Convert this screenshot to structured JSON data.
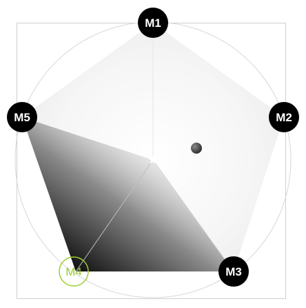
{
  "markers": [
    {
      "id": "m1",
      "label": "M1",
      "state": "filled"
    },
    {
      "id": "m2",
      "label": "M2",
      "state": "filled"
    },
    {
      "id": "m3",
      "label": "M3",
      "state": "filled"
    },
    {
      "id": "m4",
      "label": "M4",
      "state": "outlined"
    },
    {
      "id": "m5",
      "label": "M5",
      "state": "filled"
    }
  ],
  "colors": {
    "marker_fill": "#000000",
    "marker_text": "#ffffff",
    "marker_outline_accent": "#9acd32",
    "frame_stroke": "#c8c8c8",
    "circle_stroke": "#d0d0d0",
    "gradient_dark": "#111111",
    "gradient_light": "#ffffff",
    "handle": "#3a3a3a",
    "center_star": "#ffffff"
  },
  "icons": {
    "center": "star-icon",
    "handle": "dot-handle"
  }
}
